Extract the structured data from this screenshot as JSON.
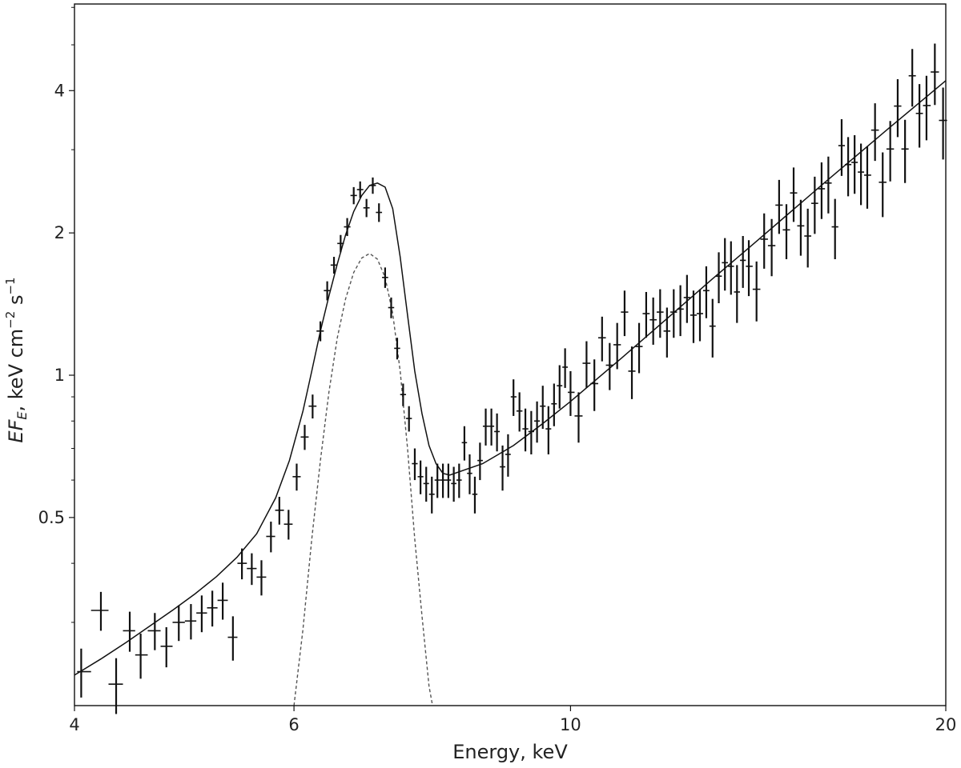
{
  "chart_data": {
    "type": "scatter",
    "title": "",
    "xlabel": "Energy, keV",
    "ylabel_parts": {
      "base": "EF",
      "sub": "E",
      "after": ", keV cm",
      "exp1": "−2",
      "mid": " s",
      "exp2": "−1"
    },
    "x_scale": "log",
    "y_scale": "log",
    "xlim": [
      4,
      20
    ],
    "ylim": [
      0.2,
      6.1
    ],
    "x_ticks": [
      4,
      6,
      10,
      20
    ],
    "x_tick_labels": [
      "4",
      "6",
      "10",
      "20"
    ],
    "y_ticks": [
      0.5,
      1,
      2,
      4
    ],
    "y_tick_labels": [
      "0.5",
      "1",
      "2",
      "4"
    ],
    "grid": false,
    "colors": {
      "data": "#111111",
      "model": "#111111",
      "line_component": "#555555"
    },
    "series": [
      {
        "kind": "errorbar",
        "x": [
          4.05,
          4.2,
          4.32,
          4.43,
          4.52,
          4.64,
          4.74,
          4.85,
          4.96,
          5.06,
          5.16,
          5.26,
          5.36,
          5.45,
          5.55,
          5.65,
          5.75,
          5.84,
          5.94,
          6.03,
          6.12,
          6.21,
          6.3,
          6.38,
          6.46,
          6.54,
          6.62,
          6.7,
          6.78,
          6.86,
          6.94,
          7.02,
          7.1,
          7.18,
          7.26,
          7.34,
          7.42,
          7.5,
          7.58,
          7.66,
          7.74,
          7.82,
          7.9,
          7.98,
          8.06,
          8.14,
          8.22,
          8.3,
          8.38,
          8.46,
          8.55,
          8.64,
          8.73,
          8.82,
          8.91,
          9.0,
          9.1,
          9.2,
          9.3,
          9.4,
          9.5,
          9.6,
          9.7,
          9.8,
          9.9,
          10.0,
          10.15,
          10.3,
          10.45,
          10.6,
          10.75,
          10.9,
          11.05,
          11.2,
          11.35,
          11.5,
          11.65,
          11.8,
          11.95,
          12.1,
          12.25,
          12.4,
          12.55,
          12.7,
          12.85,
          13.0,
          13.15,
          13.3,
          13.45,
          13.6,
          13.75,
          13.9,
          14.1,
          14.3,
          14.5,
          14.7,
          14.9,
          15.1,
          15.3,
          15.5,
          15.7,
          15.9,
          16.1,
          16.3,
          16.5,
          16.7,
          16.9,
          17.1,
          17.3,
          17.55,
          17.8,
          18.05,
          18.3,
          18.55,
          18.8,
          19.05,
          19.3,
          19.6,
          19.9
        ],
        "y": [
          0.236,
          0.318,
          0.222,
          0.288,
          0.256,
          0.288,
          0.267,
          0.3,
          0.302,
          0.314,
          0.322,
          0.334,
          0.279,
          0.4,
          0.39,
          0.374,
          0.456,
          0.518,
          0.484,
          0.61,
          0.74,
          0.86,
          1.24,
          1.51,
          1.71,
          1.9,
          2.06,
          2.4,
          2.47,
          2.26,
          2.52,
          2.21,
          1.61,
          1.39,
          1.14,
          0.91,
          0.81,
          0.65,
          0.61,
          0.59,
          0.56,
          0.6,
          0.6,
          0.6,
          0.59,
          0.6,
          0.72,
          0.62,
          0.56,
          0.66,
          0.78,
          0.78,
          0.76,
          0.64,
          0.68,
          0.9,
          0.84,
          0.77,
          0.76,
          0.8,
          0.86,
          0.77,
          0.87,
          0.95,
          1.04,
          0.92,
          0.82,
          1.06,
          0.96,
          1.2,
          1.05,
          1.16,
          1.36,
          1.02,
          1.15,
          1.35,
          1.31,
          1.36,
          1.24,
          1.36,
          1.38,
          1.46,
          1.34,
          1.35,
          1.51,
          1.27,
          1.62,
          1.73,
          1.7,
          1.5,
          1.75,
          1.7,
          1.52,
          1.94,
          1.88,
          2.29,
          2.03,
          2.43,
          2.07,
          1.97,
          2.31,
          2.48,
          2.55,
          2.06,
          3.06,
          2.79,
          2.82,
          2.69,
          2.65,
          3.3,
          2.56,
          3.01,
          3.71,
          3.01,
          4.3,
          3.58,
          3.72,
          4.38,
          3.46
        ],
        "yerr": [
          0.028,
          0.03,
          0.03,
          0.028,
          0.028,
          0.026,
          0.026,
          0.026,
          0.026,
          0.028,
          0.028,
          0.03,
          0.03,
          0.03,
          0.03,
          0.032,
          0.034,
          0.035,
          0.035,
          0.04,
          0.045,
          0.05,
          0.06,
          0.07,
          0.07,
          0.08,
          0.09,
          0.1,
          0.1,
          0.1,
          0.1,
          0.1,
          0.08,
          0.07,
          0.06,
          0.05,
          0.05,
          0.05,
          0.05,
          0.05,
          0.05,
          0.05,
          0.05,
          0.05,
          0.05,
          0.05,
          0.06,
          0.06,
          0.05,
          0.06,
          0.07,
          0.07,
          0.07,
          0.07,
          0.07,
          0.08,
          0.08,
          0.08,
          0.08,
          0.08,
          0.09,
          0.09,
          0.09,
          0.1,
          0.1,
          0.1,
          0.1,
          0.12,
          0.12,
          0.13,
          0.12,
          0.13,
          0.15,
          0.13,
          0.14,
          0.15,
          0.15,
          0.16,
          0.15,
          0.16,
          0.17,
          0.17,
          0.17,
          0.17,
          0.19,
          0.18,
          0.2,
          0.22,
          0.22,
          0.21,
          0.22,
          0.23,
          0.22,
          0.26,
          0.26,
          0.3,
          0.27,
          0.32,
          0.28,
          0.28,
          0.32,
          0.34,
          0.35,
          0.3,
          0.42,
          0.4,
          0.4,
          0.4,
          0.4,
          0.46,
          0.4,
          0.44,
          0.52,
          0.46,
          0.6,
          0.55,
          0.58,
          0.65,
          0.6
        ]
      },
      {
        "kind": "model",
        "x": [
          4.0,
          4.2,
          4.4,
          4.6,
          4.8,
          5.0,
          5.2,
          5.4,
          5.6,
          5.8,
          5.95,
          6.1,
          6.2,
          6.3,
          6.4,
          6.5,
          6.6,
          6.7,
          6.8,
          6.9,
          7.0,
          7.1,
          7.2,
          7.3,
          7.4,
          7.5,
          7.6,
          7.7,
          7.8,
          7.9,
          8.0,
          8.5,
          9.0,
          9.5,
          10.0,
          11.0,
          12.0,
          13.0,
          14.0,
          15.0,
          16.0,
          17.0,
          18.0,
          19.0,
          20.0
        ],
        "y": [
          0.232,
          0.251,
          0.272,
          0.295,
          0.319,
          0.345,
          0.375,
          0.412,
          0.462,
          0.55,
          0.66,
          0.84,
          1.02,
          1.24,
          1.47,
          1.72,
          1.98,
          2.22,
          2.4,
          2.52,
          2.55,
          2.5,
          2.25,
          1.78,
          1.34,
          1.02,
          0.83,
          0.71,
          0.65,
          0.62,
          0.615,
          0.65,
          0.71,
          0.79,
          0.88,
          1.09,
          1.33,
          1.6,
          1.89,
          2.21,
          2.56,
          2.93,
          3.33,
          3.75,
          4.2
        ]
      },
      {
        "kind": "line_component",
        "x": [
          6.0,
          6.1,
          6.2,
          6.3,
          6.4,
          6.5,
          6.6,
          6.7,
          6.8,
          6.9,
          7.0,
          7.1,
          7.2,
          7.3,
          7.4,
          7.5,
          7.6,
          7.7,
          7.75
        ],
        "y": [
          0.2,
          0.29,
          0.45,
          0.66,
          0.92,
          1.2,
          1.45,
          1.65,
          1.77,
          1.81,
          1.76,
          1.61,
          1.35,
          1.02,
          0.7,
          0.45,
          0.31,
          0.22,
          0.2
        ]
      }
    ]
  }
}
